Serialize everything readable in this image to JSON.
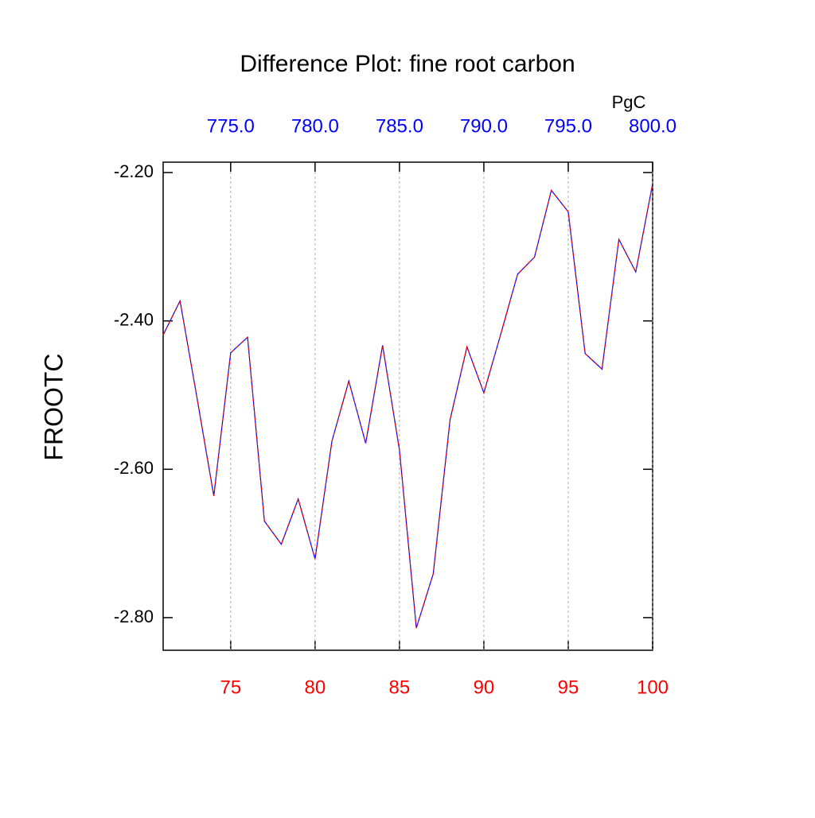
{
  "chart_data": {
    "type": "line",
    "title": "Difference Plot: fine root carbon",
    "ylabel": "FROOTC",
    "units": "PgC",
    "x": [
      71,
      72,
      73,
      74,
      75,
      76,
      77,
      78,
      79,
      80,
      81,
      82,
      83,
      84,
      85,
      86,
      87,
      88,
      89,
      90,
      91,
      92,
      93,
      94,
      95,
      96,
      97,
      98,
      99,
      100
    ],
    "series": [
      {
        "color": "#0000ff",
        "dash_color": "#ff0000",
        "values": [
          -2.419,
          -2.373,
          -2.503,
          -2.636,
          -2.443,
          -2.422,
          -2.67,
          -2.701,
          -2.64,
          -2.721,
          -2.562,
          -2.481,
          -2.565,
          -2.433,
          -2.574,
          -2.814,
          -2.741,
          -2.533,
          -2.435,
          -2.497,
          -2.418,
          -2.337,
          -2.314,
          -2.224,
          -2.253,
          -2.444,
          -2.465,
          -2.29,
          -2.334,
          -2.215
        ]
      }
    ],
    "xlim": [
      71,
      100
    ],
    "xticks": [
      75,
      80,
      85,
      90,
      95,
      100
    ],
    "xtick_color": "#ff0000",
    "x2lim": [
      771,
      800
    ],
    "x2ticks": [
      {
        "value": 775,
        "label": "775.0"
      },
      {
        "value": 780,
        "label": "780.0"
      },
      {
        "value": 785,
        "label": "785.0"
      },
      {
        "value": 790,
        "label": "790.0"
      },
      {
        "value": 795,
        "label": "795.0"
      },
      {
        "value": 800,
        "label": "800.0"
      }
    ],
    "x2tick_color": "#0000ff",
    "ylim": [
      -2.844,
      -2.186
    ],
    "yticks": [
      {
        "value": -2.2,
        "label": "-2.20"
      },
      {
        "value": -2.4,
        "label": "-2.40"
      },
      {
        "value": -2.6,
        "label": "-2.60"
      },
      {
        "value": -2.8,
        "label": "-2.80"
      }
    ],
    "grid": true
  }
}
